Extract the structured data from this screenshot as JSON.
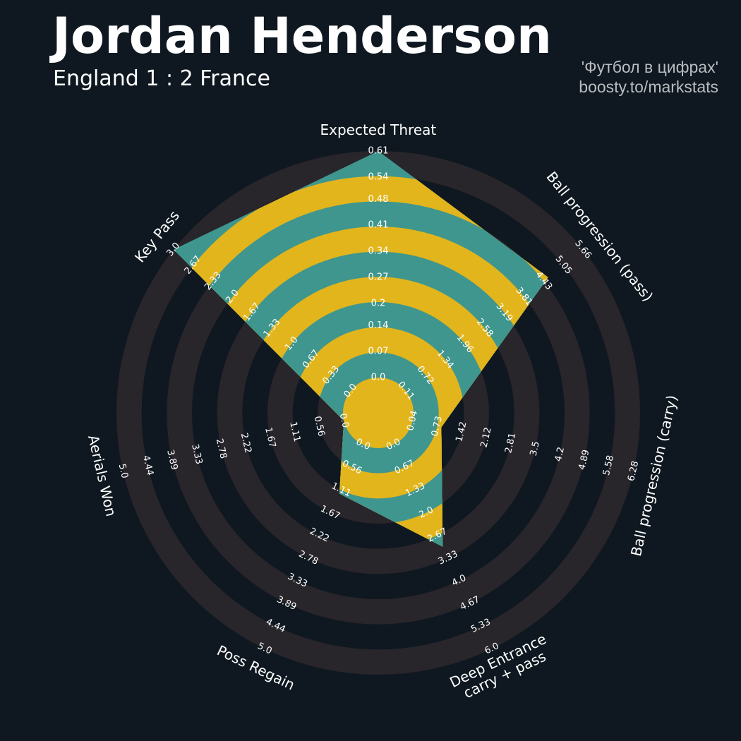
{
  "chart_data": {
    "type": "radar",
    "title": "Jordan Henderson",
    "subtitle": "England 1 : 2 France",
    "annotations": [
      "'Футбол в цифрах'",
      "boosty.to/markstats"
    ],
    "categories": [
      "Expected Threat",
      "Ball progression (pass)",
      "Ball progression (carry)",
      "Deep Entrance\ncarry + pass",
      "Poss Regain",
      "Aerials Won",
      "Key Pass"
    ],
    "values": [
      0.61,
      4.57,
      0.85,
      3.0,
      1.2,
      0,
      3.0
    ],
    "axes": [
      {
        "lim": [
          0,
          0.61
        ],
        "ticks": [
          {
            "value": 0,
            "label": "0.0"
          },
          0.07,
          0.14,
          0.2,
          0.27,
          0.34,
          0.41,
          0.48,
          0.54,
          0.61
        ]
      },
      {
        "lim": [
          0.11,
          5.66
        ],
        "ticks": [
          0.11,
          0.72,
          1.34,
          1.96,
          2.58,
          3.19,
          3.81,
          4.43,
          5.05,
          5.66
        ]
      },
      {
        "lim": [
          0.04,
          6.28
        ],
        "ticks": [
          0.04,
          0.73,
          1.42,
          2.12,
          2.81,
          3.5,
          4.2,
          4.89,
          5.58,
          6.28
        ]
      },
      {
        "lim": [
          0,
          6
        ],
        "ticks": [
          {
            "value": 0,
            "label": "0.0"
          },
          0.67,
          1.33,
          {
            "value": 2,
            "label": "2.0"
          },
          2.67,
          3.33,
          {
            "value": 4,
            "label": "4.0"
          },
          4.67,
          5.33,
          {
            "value": 6,
            "label": "6.0"
          }
        ]
      },
      {
        "lim": [
          0,
          5
        ],
        "ticks": [
          {
            "value": 0,
            "label": "0.0"
          },
          0.56,
          1.11,
          1.67,
          2.22,
          2.78,
          3.33,
          3.89,
          4.44,
          {
            "value": 5,
            "label": "5.0"
          }
        ]
      },
      {
        "lim": [
          0,
          5
        ],
        "ticks": [
          {
            "value": 0,
            "label": "0.0"
          },
          0.56,
          1.11,
          1.67,
          2.22,
          2.78,
          3.33,
          3.89,
          4.44,
          {
            "value": 5,
            "label": "5.0"
          }
        ]
      },
      {
        "lim": [
          0,
          3
        ],
        "ticks": [
          {
            "value": 0,
            "label": "0.0"
          },
          0.33,
          0.67,
          {
            "value": 1,
            "label": "1.0"
          },
          1.33,
          1.67,
          {
            "value": 2,
            "label": "2.0"
          },
          2.33,
          2.67,
          {
            "value": 3,
            "label": "3.0"
          }
        ]
      }
    ],
    "colors": {
      "ring": "#28252b",
      "background": "#0f1820",
      "face": "#3f968e",
      "alt": "#e2b51c"
    }
  }
}
